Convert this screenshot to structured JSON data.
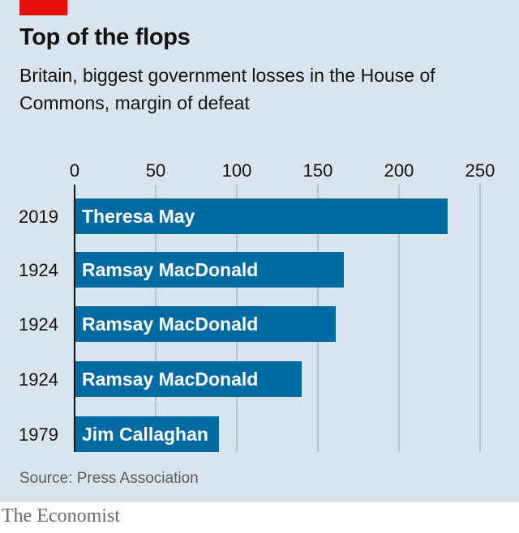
{
  "header": {
    "title": "Top of the flops",
    "subtitle": "Britain, biggest government losses in the House of Commons, margin of defeat"
  },
  "source": "Source: Press Association",
  "footer": "The Economist",
  "colors": {
    "bar": "#006ba2",
    "accent": "#e3120b",
    "background": "#d9e4ec",
    "grid": "#b7c6cf"
  },
  "chart_data": {
    "type": "bar",
    "orientation": "horizontal",
    "title": "Top of the flops",
    "xlabel": "",
    "ylabel": "",
    "xlim": [
      0,
      250
    ],
    "xticks": [
      0,
      50,
      100,
      150,
      200,
      250
    ],
    "grid": true,
    "categories": [
      "2019",
      "1924",
      "1924",
      "1924",
      "1979"
    ],
    "bar_labels": [
      "Theresa May",
      "Ramsay MacDonald",
      "Ramsay MacDonald",
      "Ramsay MacDonald",
      "Jim Callaghan"
    ],
    "values": [
      230,
      166,
      161,
      140,
      89
    ]
  }
}
